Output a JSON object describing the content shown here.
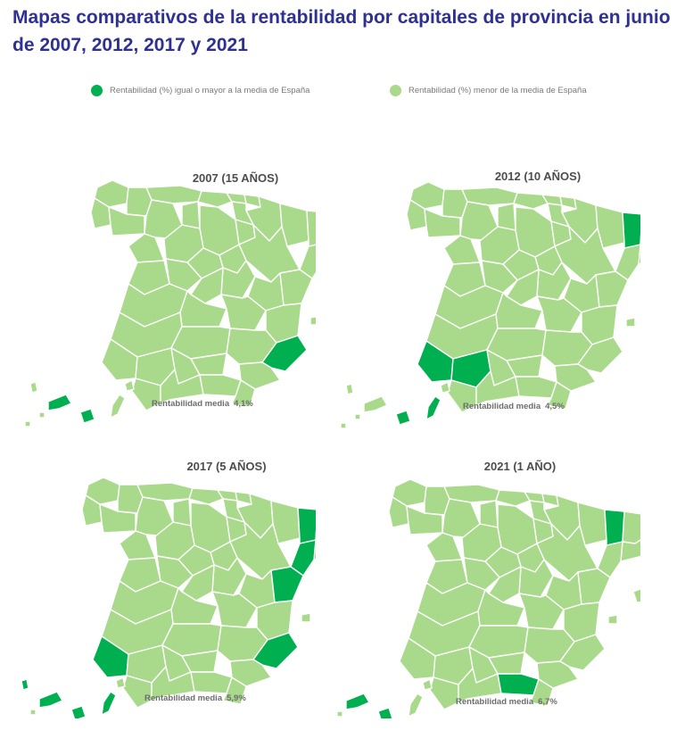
{
  "title": "Mapas comparativos de la rentabilidad por capitales de provincia en junio de 2007, 2012, 2017 y 2021",
  "legend": {
    "above": {
      "label": "Rentabilidad (%) igual o mayor a la media de España",
      "color": "#00b050"
    },
    "below": {
      "label": "Rentabilidad (%) menor de la media de España",
      "color": "#a9d98a"
    }
  },
  "colors": {
    "border": "#ffffff"
  },
  "maps": [
    {
      "title": "2007 (15 AÑOS)",
      "avg_label": "Rentabilidad media",
      "avg_value": "4,1%",
      "above_average": [
        "Alicante",
        "Mallorca",
        "Tenerife",
        "Gran Canaria"
      ]
    },
    {
      "title": "2012 (10 AÑOS)",
      "avg_label": "Rentabilidad media",
      "avg_value": "4,5%",
      "above_average": [
        "Lleida",
        "Huelva",
        "Sevilla",
        "Mallorca",
        "Gran Canaria",
        "Fuerteventura"
      ]
    },
    {
      "title": "2017 (5 AÑOS)",
      "avg_label": "Rentabilidad media",
      "avg_value": "5,9%",
      "above_average": [
        "Lleida",
        "Tarragona",
        "Castellón",
        "Alicante",
        "Huelva",
        "Tenerife",
        "Gran Canaria",
        "Fuerteventura",
        "La Palma",
        "El Hierro"
      ]
    },
    {
      "title": "2021 (1 AÑO)",
      "avg_label": "Rentabilidad media",
      "avg_value": "6,7%",
      "above_average": [
        "Lleida",
        "Granada",
        "Tenerife",
        "Gran Canaria"
      ]
    }
  ]
}
